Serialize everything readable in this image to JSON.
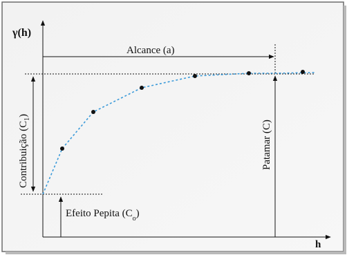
{
  "labels": {
    "y_axis": "γ(h)",
    "x_axis": "h",
    "range": "Alcance (a)",
    "contribution": "Contribuição (C",
    "contribution_sub": "1",
    "contribution_close": ")",
    "sill": "Patamar (C)",
    "nugget": "Efeito Pepita (C",
    "nugget_sub": "o",
    "nugget_close": ")"
  },
  "colors": {
    "panel_background": "#f4f4f4",
    "border": "#6b6b6b",
    "axes": "#111111",
    "curve": "#3a9ad9",
    "points": "#111111"
  }
}
